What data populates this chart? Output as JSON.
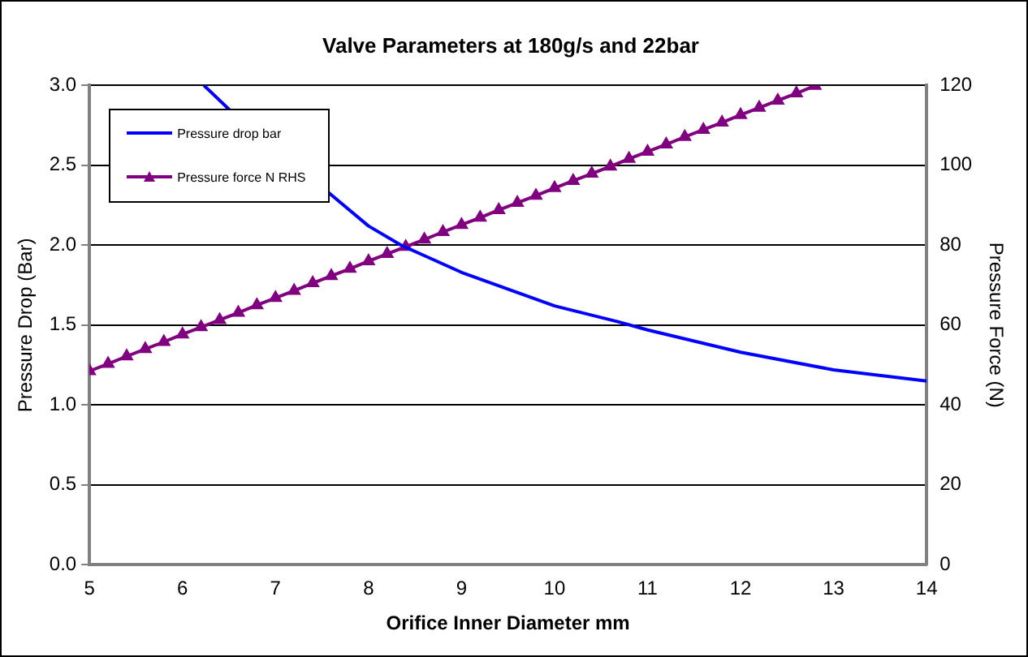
{
  "chart_data": {
    "type": "line",
    "title": "Valve Parameters at 180g/s and 22bar",
    "xlabel": "Orifice Inner Diameter mm",
    "ylabel": "Pressure Drop (Bar)",
    "y2label": "Pressure Force (N)",
    "xlim": [
      5,
      14
    ],
    "xticks": [
      5,
      6,
      7,
      8,
      9,
      10,
      11,
      12,
      13,
      14
    ],
    "ylim": [
      0,
      3
    ],
    "yticks": [
      {
        "value": 0,
        "label": "0.0"
      },
      {
        "value": 0.5,
        "label": "0.5"
      },
      {
        "value": 1,
        "label": "1.0"
      },
      {
        "value": 1.5,
        "label": "1.5"
      },
      {
        "value": 2,
        "label": "2.0"
      },
      {
        "value": 2.5,
        "label": "2.5"
      },
      {
        "value": 3,
        "label": "3.0"
      }
    ],
    "y2lim": [
      0,
      120
    ],
    "y2ticks": [
      0,
      20,
      40,
      60,
      80,
      100,
      120
    ],
    "grid": "y",
    "legend": "top left",
    "line_style": "solid",
    "series": [
      {
        "name": "Pressure drop bar",
        "color": "#0000ff",
        "marker": "none",
        "x": [
          6.23,
          6.5,
          7,
          7.38,
          8,
          8.35,
          9,
          10,
          10.69,
          11,
          12,
          13,
          14
        ],
        "values": [
          3.0,
          2.85,
          null,
          null,
          2.12,
          2.0,
          1.83,
          1.62,
          1.52,
          1.47,
          1.33,
          1.22,
          1.15
        ]
      },
      {
        "name": "Pressure force N RHS",
        "color": "#800080",
        "marker": "triangle",
        "axis": "y2",
        "x": [
          5.0,
          5.2,
          5.4,
          5.6,
          5.8,
          6.0,
          6.2,
          6.4,
          6.6,
          6.8,
          7.0,
          7.2,
          7.4,
          7.6,
          7.8,
          8.0,
          8.2,
          8.4,
          8.6,
          8.8,
          9.0,
          9.2,
          9.4,
          9.6,
          9.8,
          10.0,
          10.2,
          10.4,
          10.6,
          10.8,
          11.0,
          11.2,
          11.4,
          11.6,
          11.8,
          12.0,
          12.2,
          12.4,
          12.6,
          12.8
        ],
        "values": [
          48.5,
          50.3,
          52.2,
          54.0,
          55.8,
          57.7,
          59.5,
          61.3,
          63.1,
          65.0,
          66.8,
          68.6,
          70.5,
          72.3,
          74.1,
          76.0,
          77.8,
          79.6,
          81.4,
          83.3,
          85.1,
          86.9,
          88.8,
          90.6,
          92.4,
          94.3,
          96.1,
          97.9,
          99.7,
          101.6,
          103.4,
          105.2,
          107.1,
          108.9,
          110.7,
          112.6,
          114.4,
          116.2,
          118.0,
          119.9
        ]
      }
    ]
  }
}
